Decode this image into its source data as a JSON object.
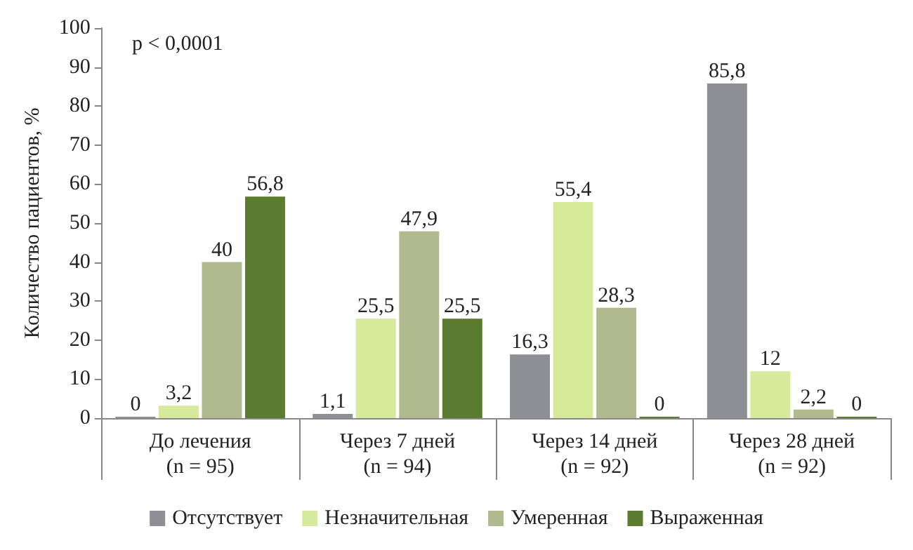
{
  "chart_data": {
    "type": "bar",
    "ylabel": "Количество пациентов, %",
    "categories": [
      "До лечения\n(n = 95)",
      "Через 7 дней\n(n = 94)",
      "Через 14 дней\n(n = 92)",
      "Через 28 дней\n(n = 92)"
    ],
    "series": [
      {
        "name": "Отсутствует",
        "color": "#8e8f94",
        "values": [
          0,
          1.1,
          16.3,
          85.8
        ],
        "value_labels": [
          "0",
          "1,1",
          "16,3",
          "85,8"
        ]
      },
      {
        "name": "Незначительная",
        "color": "#d5ea9b",
        "values": [
          3.2,
          25.5,
          55.4,
          12
        ],
        "value_labels": [
          "3,2",
          "25,5",
          "55,4",
          "12"
        ]
      },
      {
        "name": "Умеренная",
        "color": "#b1b98f",
        "values": [
          40,
          47.9,
          28.3,
          2.2
        ],
        "value_labels": [
          "40",
          "47,9",
          "28,3",
          "2,2"
        ]
      },
      {
        "name": "Выраженная",
        "color": "#5b7b2f",
        "values": [
          56.8,
          25.5,
          0,
          0
        ],
        "value_labels": [
          "56,8",
          "25,5",
          "0",
          "0"
        ]
      }
    ],
    "ylim": [
      0,
      100
    ],
    "yticks": [
      0,
      10,
      20,
      30,
      40,
      50,
      60,
      70,
      80,
      90,
      100
    ],
    "grid": false,
    "legend": "bottom",
    "annotations": [
      "p < 0,0001"
    ]
  }
}
